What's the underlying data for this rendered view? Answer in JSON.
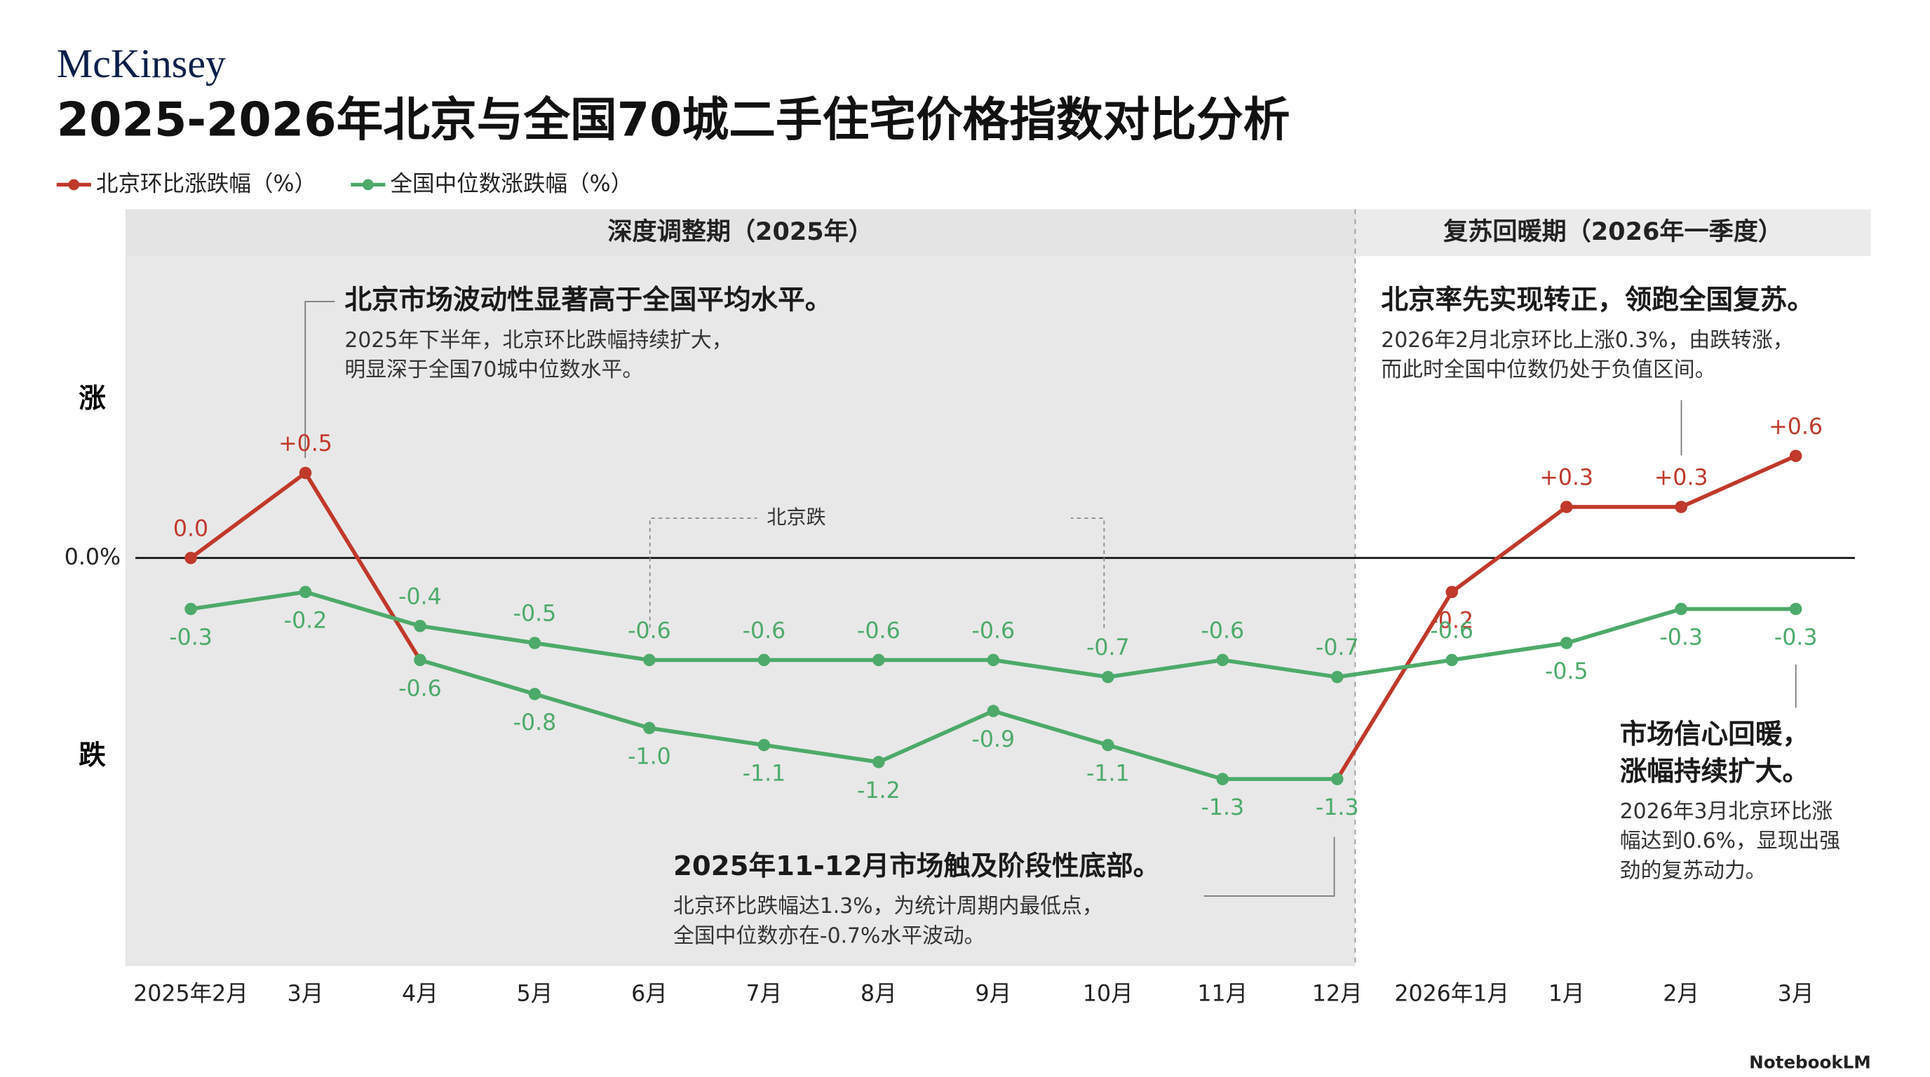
{
  "chart_data": {
    "type": "line",
    "brand": "McKinsey",
    "title": "2025-2026年北京与全国70城二手住宅价格指数对比分析",
    "watermark": "NotebookLM",
    "periods": [
      {
        "label": "深度调整期（2025年）",
        "color": "#e8e8e8"
      },
      {
        "label": "复苏回暖期（2026年一季度）",
        "color": "#ebebeb"
      }
    ],
    "y_up_label": "涨",
    "y_down_label": "跌",
    "categories": [
      "2025年2月",
      "3月",
      "4月",
      "5月",
      "6月",
      "7月",
      "8月",
      "9月",
      "10月",
      "11月",
      "12月",
      "2026年1月",
      "1月",
      "2月",
      "3月"
    ],
    "ylim": [
      -2.4,
      2.05
    ],
    "yticks": [
      {
        "value": 0,
        "label": "0.0%"
      }
    ],
    "series": [
      {
        "name": "北京环比涨跌幅（%）",
        "color": "#c0392b",
        "values": [
          0.0,
          0.5,
          -0.6,
          -0.8,
          -1.0,
          -1.1,
          -1.2,
          -0.9,
          -1.1,
          -1.3,
          -1.3,
          -0.2,
          0.3,
          0.3,
          0.6
        ],
        "value_labels": [
          "0.0",
          "+0.5",
          "-0.6",
          "-0.8",
          "-1.0",
          "-1.1",
          "-1.2",
          "-0.9",
          "-1.1",
          "-1.3",
          "-1.3",
          "-0.2",
          "+0.3",
          "+0.3",
          "+0.6"
        ],
        "segment_colors": [
          "#c0392b",
          "#c0392b",
          "#4daa6a",
          "#4daa6a",
          "#4daa6a",
          "#4daa6a",
          "#4daa6a",
          "#4daa6a",
          "#4daa6a",
          "#4daa6a",
          "#c0392b",
          "#c0392b",
          "#c0392b",
          "#c0392b"
        ],
        "point_colors": [
          "#c0392b",
          "#c0392b",
          "#4daa6a",
          "#4daa6a",
          "#4daa6a",
          "#4daa6a",
          "#4daa6a",
          "#4daa6a",
          "#4daa6a",
          "#4daa6a",
          "#4daa6a",
          "#c0392b",
          "#c0392b",
          "#c0392b",
          "#c0392b"
        ]
      },
      {
        "name": "全国中位数涨跌幅（%）",
        "color": "#4daa6a",
        "values": [
          -0.3,
          -0.2,
          -0.4,
          -0.5,
          -0.6,
          -0.6,
          -0.6,
          -0.6,
          -0.7,
          -0.6,
          -0.7,
          -0.6,
          -0.5,
          -0.3,
          -0.3
        ]
      }
    ],
    "annotations": [
      {
        "title": [
          "北京市场波动性显著高于全国平均水平。"
        ],
        "lines": [
          "2025年下半年，北京环比跌幅持续扩大，",
          "明显深于全国70城中位数水平。"
        ]
      },
      {
        "title": [
          "北京率先实现转正，领跑全国复苏。"
        ],
        "lines": [
          "2026年2月北京环比上涨0.3%，由跌转涨，",
          "而此时全国中位数仍处于负值区间。"
        ]
      },
      {
        "title": [
          "2025年11-12月市场触及阶段性底部。"
        ],
        "lines": [
          "北京环比跌幅达1.3%，为统计周期内最低点，",
          "全国中位数亦在-0.7%水平波动。"
        ]
      },
      {
        "title": [
          "市场信心回暖，",
          "涨幅持续扩大。"
        ],
        "lines": [
          "2026年3月北京环比涨",
          "幅达到0.6%，显现出强",
          "劲的复苏动力。"
        ]
      },
      {
        "title": [
          "北京跌"
        ],
        "lines": []
      }
    ]
  }
}
